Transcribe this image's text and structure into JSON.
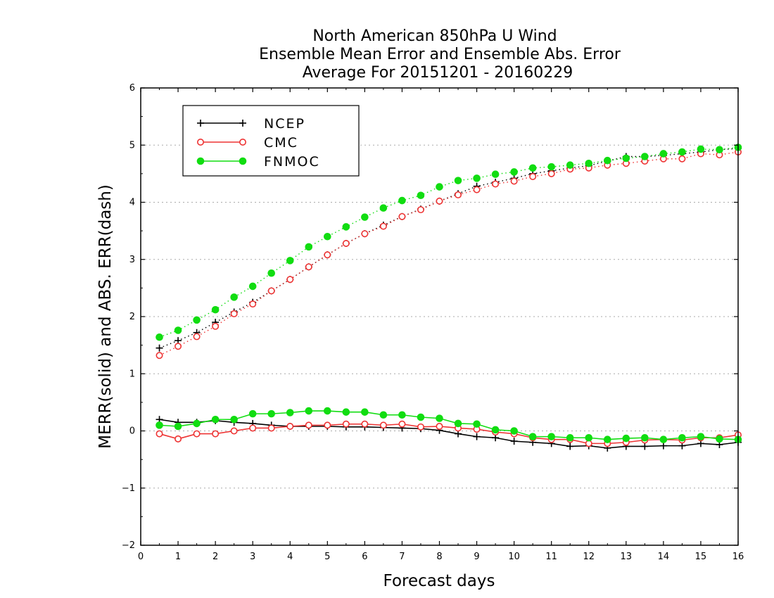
{
  "chart_data": {
    "type": "line",
    "title": [
      "North American 850hPa U Wind",
      "Ensemble Mean Error and Ensemble Abs. Error",
      "Average For 20151201 - 20160229"
    ],
    "xlabel": "Forecast days",
    "ylabel": "MERR(solid) and ABS. ERR(dash)",
    "xlim": [
      0,
      16
    ],
    "ylim": [
      -2,
      6
    ],
    "xticks": [
      "0",
      "1",
      "2",
      "3",
      "4",
      "5",
      "6",
      "7",
      "8",
      "9",
      "10",
      "11",
      "12",
      "13",
      "14",
      "15",
      "16"
    ],
    "yticks": [
      "−2",
      "−1",
      "0",
      "1",
      "2",
      "3",
      "4",
      "5",
      "6"
    ],
    "grid": "horizontal dotted",
    "legend_position": "top-left",
    "x": [
      0.5,
      1,
      1.5,
      2,
      2.5,
      3,
      3.5,
      4,
      4.5,
      5,
      5.5,
      6,
      6.5,
      7,
      7.5,
      8,
      8.5,
      9,
      9.5,
      10,
      10.5,
      11,
      11.5,
      12,
      12.5,
      13,
      13.5,
      14,
      14.5,
      15,
      15.5,
      16
    ],
    "series": [
      {
        "name": "NCEP",
        "color": "#000000",
        "marker": "plus",
        "merr": [
          0.2,
          0.15,
          0.15,
          0.18,
          0.15,
          0.13,
          0.1,
          0.08,
          0.08,
          0.08,
          0.07,
          0.07,
          0.06,
          0.05,
          0.04,
          0.01,
          -0.05,
          -0.1,
          -0.12,
          -0.18,
          -0.2,
          -0.22,
          -0.27,
          -0.26,
          -0.3,
          -0.27,
          -0.27,
          -0.26,
          -0.26,
          -0.22,
          -0.24,
          -0.2
        ],
        "abs_err": [
          1.45,
          1.58,
          1.72,
          1.9,
          2.08,
          2.25,
          2.45,
          2.65,
          2.87,
          3.08,
          3.28,
          3.45,
          3.6,
          3.75,
          3.88,
          4.02,
          4.15,
          4.28,
          4.35,
          4.42,
          4.5,
          4.55,
          4.6,
          4.64,
          4.72,
          4.8,
          4.8,
          4.82,
          4.85,
          4.88,
          4.92,
          4.94
        ]
      },
      {
        "name": "CMC",
        "color": "#ee3333",
        "marker": "open-circle",
        "merr": [
          -0.05,
          -0.14,
          -0.05,
          -0.05,
          0.0,
          0.05,
          0.05,
          0.08,
          0.1,
          0.1,
          0.12,
          0.12,
          0.1,
          0.12,
          0.07,
          0.08,
          0.05,
          0.03,
          -0.02,
          -0.05,
          -0.12,
          -0.15,
          -0.15,
          -0.22,
          -0.22,
          -0.2,
          -0.16,
          -0.15,
          -0.16,
          -0.12,
          -0.12,
          -0.07
        ],
        "abs_err": [
          1.32,
          1.48,
          1.65,
          1.83,
          2.05,
          2.22,
          2.45,
          2.65,
          2.87,
          3.08,
          3.28,
          3.45,
          3.58,
          3.75,
          3.87,
          4.02,
          4.13,
          4.22,
          4.32,
          4.37,
          4.45,
          4.5,
          4.58,
          4.6,
          4.65,
          4.68,
          4.72,
          4.76,
          4.76,
          4.85,
          4.83,
          4.88
        ]
      },
      {
        "name": "FNMOC",
        "color": "#11dd11",
        "marker": "filled-circle",
        "merr": [
          0.1,
          0.08,
          0.13,
          0.2,
          0.2,
          0.3,
          0.3,
          0.32,
          0.35,
          0.35,
          0.33,
          0.33,
          0.28,
          0.28,
          0.24,
          0.22,
          0.13,
          0.12,
          0.02,
          0.0,
          -0.1,
          -0.1,
          -0.12,
          -0.12,
          -0.15,
          -0.13,
          -0.12,
          -0.15,
          -0.12,
          -0.1,
          -0.14,
          -0.15
        ],
        "abs_err": [
          1.64,
          1.76,
          1.94,
          2.12,
          2.34,
          2.53,
          2.76,
          2.98,
          3.22,
          3.4,
          3.57,
          3.74,
          3.9,
          4.03,
          4.12,
          4.27,
          4.38,
          4.42,
          4.49,
          4.53,
          4.6,
          4.62,
          4.65,
          4.68,
          4.73,
          4.77,
          4.8,
          4.85,
          4.88,
          4.93,
          4.92,
          4.96
        ]
      }
    ]
  }
}
